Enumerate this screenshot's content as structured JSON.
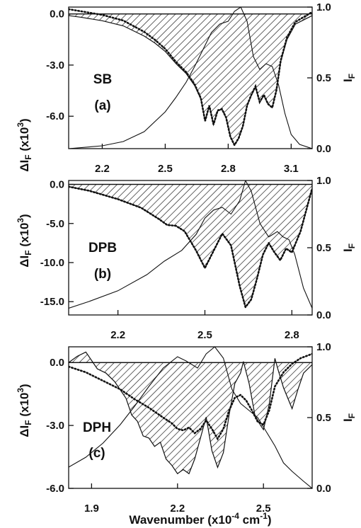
{
  "figure": {
    "xlabel": "Wavenumber (x10",
    "xlabel_sup": "-4",
    "xlabel_unit": " cm",
    "xlabel_unit_sup": "-1",
    "xlabel_close": ")",
    "left_label_main": "ΔI",
    "left_label_sub": "F",
    "left_label_rest": " (x10",
    "left_label_sup": "3",
    "left_label_close": ")",
    "right_label_main": "I",
    "right_label_sub": "F"
  },
  "chart_data": [
    {
      "type": "area",
      "name_line1": "SB",
      "name_line2": "(a)",
      "xlim": [
        2.04,
        3.2
      ],
      "ylim_left": [
        -7.9,
        0.4
      ],
      "ylim_right": [
        0.0,
        1.0
      ],
      "x_ticks": [
        2.2,
        2.5,
        2.8,
        3.1
      ],
      "x_tick_labels": [
        "2.2",
        "2.5",
        "2.8",
        "3.1"
      ],
      "y_left_ticks": [
        0.0,
        -3.0,
        -6.0
      ],
      "y_left_tick_labels": [
        "0.0",
        "-3.0",
        "-6.0"
      ],
      "y_right_ticks": [
        0.0,
        0.5,
        1.0
      ],
      "y_right_tick_labels": [
        "0.0",
        "0.5",
        "1.0"
      ],
      "delta_if": {
        "x": [
          2.04,
          2.1,
          2.2,
          2.3,
          2.35,
          2.4,
          2.45,
          2.5,
          2.55,
          2.6,
          2.64,
          2.67,
          2.69,
          2.71,
          2.73,
          2.75,
          2.77,
          2.79,
          2.81,
          2.83,
          2.85,
          2.87,
          2.89,
          2.91,
          2.93,
          2.95,
          2.97,
          2.99,
          3.01,
          3.03,
          3.05,
          3.08,
          3.12,
          3.2
        ],
        "y": [
          -0.1,
          -0.2,
          -0.4,
          -0.7,
          -1.0,
          -1.3,
          -1.7,
          -2.2,
          -2.9,
          -3.5,
          -4.2,
          -5.0,
          -6.3,
          -5.4,
          -6.5,
          -5.7,
          -5.6,
          -6.1,
          -7.2,
          -7.7,
          -7.3,
          -6.6,
          -5.4,
          -4.8,
          -4.3,
          -5.2,
          -4.8,
          -5.3,
          -5.5,
          -4.5,
          -2.8,
          -1.5,
          -0.6,
          -0.1
        ]
      },
      "if_spectrum": {
        "x": [
          2.04,
          2.2,
          2.3,
          2.4,
          2.5,
          2.55,
          2.6,
          2.64,
          2.68,
          2.72,
          2.76,
          2.8,
          2.83,
          2.86,
          2.89,
          2.92,
          2.95,
          2.98,
          3.01,
          3.04,
          3.07,
          3.1,
          3.14,
          3.2
        ],
        "y": [
          0.0,
          0.02,
          0.05,
          0.12,
          0.26,
          0.36,
          0.47,
          0.58,
          0.7,
          0.82,
          0.88,
          0.9,
          0.97,
          1.0,
          0.9,
          0.65,
          0.56,
          0.6,
          0.58,
          0.45,
          0.25,
          0.1,
          0.03,
          0.0
        ]
      },
      "if_dotted": {
        "x": [
          2.04,
          2.1,
          2.2,
          2.3,
          2.35,
          2.4,
          2.45,
          2.5,
          2.55,
          2.6,
          2.64,
          2.67,
          2.69,
          2.71,
          2.73,
          2.75,
          2.77,
          2.79,
          2.81,
          2.83,
          2.85,
          2.87,
          2.89,
          2.91,
          2.93,
          2.95,
          2.97,
          2.99,
          3.01,
          3.03,
          3.05,
          3.08,
          3.12,
          3.2
        ],
        "y": [
          0.985,
          0.97,
          0.945,
          0.905,
          0.865,
          0.825,
          0.77,
          0.705,
          0.615,
          0.54,
          0.455,
          0.355,
          0.195,
          0.305,
          0.17,
          0.27,
          0.28,
          0.22,
          0.085,
          0.025,
          0.075,
          0.16,
          0.305,
          0.38,
          0.44,
          0.33,
          0.38,
          0.315,
          0.29,
          0.415,
          0.62,
          0.785,
          0.895,
          0.965
        ]
      }
    },
    {
      "type": "area",
      "name_line1": "DPB",
      "name_line2": "(b)",
      "xlim": [
        2.03,
        2.87
      ],
      "ylim_left": [
        -16.7,
        0.5
      ],
      "ylim_right": [
        0.0,
        1.0
      ],
      "x_ticks": [
        2.2,
        2.5,
        2.8
      ],
      "x_tick_labels": [
        "2.2",
        "2.5",
        "2.8"
      ],
      "y_left_ticks": [
        0.0,
        -5.0,
        -10.0,
        -15.0
      ],
      "y_left_tick_labels": [
        "0.0",
        "-5.0",
        "-10.0",
        "-15.0"
      ],
      "y_right_ticks": [
        0.0,
        0.5,
        1.0
      ],
      "y_right_tick_labels": [
        "0.0",
        "0.5",
        "1.0"
      ],
      "delta_if": {
        "x": [
          2.03,
          2.1,
          2.2,
          2.28,
          2.34,
          2.37,
          2.4,
          2.43,
          2.47,
          2.5,
          2.53,
          2.56,
          2.59,
          2.62,
          2.64,
          2.66,
          2.68,
          2.7,
          2.72,
          2.74,
          2.76,
          2.78,
          2.8,
          2.83,
          2.87
        ],
        "y": [
          -0.3,
          -0.8,
          -1.9,
          -3.0,
          -4.4,
          -5.2,
          -5.3,
          -6.0,
          -8.5,
          -10.7,
          -8.5,
          -6.3,
          -7.8,
          -13.0,
          -15.7,
          -14.7,
          -12.0,
          -9.0,
          -7.5,
          -8.7,
          -9.7,
          -8.2,
          -8.7,
          -6.0,
          -0.5
        ]
      },
      "if_spectrum": {
        "x": [
          2.03,
          2.1,
          2.2,
          2.3,
          2.36,
          2.42,
          2.47,
          2.5,
          2.53,
          2.56,
          2.59,
          2.62,
          2.64,
          2.66,
          2.69,
          2.72,
          2.75,
          2.77,
          2.79,
          2.81,
          2.84,
          2.87
        ],
        "y": [
          0.05,
          0.1,
          0.18,
          0.3,
          0.4,
          0.48,
          0.6,
          0.72,
          0.78,
          0.8,
          0.75,
          0.85,
          1.0,
          0.92,
          0.68,
          0.58,
          0.62,
          0.58,
          0.56,
          0.45,
          0.2,
          0.05
        ]
      },
      "if_dotted": {
        "x": [
          2.03,
          2.1,
          2.2,
          2.28,
          2.34,
          2.37,
          2.4,
          2.43,
          2.47,
          2.5,
          2.53,
          2.56,
          2.59,
          2.62,
          2.64,
          2.66,
          2.68,
          2.7,
          2.72,
          2.74,
          2.76,
          2.78,
          2.8,
          2.83,
          2.87
        ],
        "y": [
          0.954,
          0.924,
          0.861,
          0.797,
          0.715,
          0.669,
          0.663,
          0.622,
          0.477,
          0.349,
          0.477,
          0.605,
          0.517,
          0.215,
          0.058,
          0.116,
          0.273,
          0.448,
          0.535,
          0.465,
          0.407,
          0.494,
          0.465,
          0.622,
          0.942
        ]
      }
    },
    {
      "type": "area",
      "name_line1": "DPH",
      "name_line2": "(c)",
      "xlim": [
        1.82,
        2.67
      ],
      "ylim_left": [
        -6.0,
        0.75
      ],
      "ylim_right": [
        0.0,
        1.0
      ],
      "x_ticks": [
        1.9,
        2.2,
        2.5
      ],
      "x_tick_labels": [
        "1.9",
        "2.2",
        "2.5"
      ],
      "y_left_ticks": [
        0.0,
        -3.0,
        -6.0
      ],
      "y_left_tick_labels": [
        "0.0",
        "-3.0",
        "-6.0"
      ],
      "y_right_ticks": [
        0.0,
        0.5,
        1.0
      ],
      "y_right_tick_labels": [
        "0.0",
        "0.5",
        "1.0"
      ],
      "delta_if": {
        "x": [
          1.82,
          1.85,
          1.88,
          1.9,
          1.92,
          1.95,
          1.98,
          2.0,
          2.02,
          2.04,
          2.06,
          2.08,
          2.1,
          2.12,
          2.14,
          2.16,
          2.18,
          2.2,
          2.22,
          2.24,
          2.26,
          2.28,
          2.3,
          2.32,
          2.34,
          2.36,
          2.38,
          2.4,
          2.42,
          2.43,
          2.45,
          2.47,
          2.49,
          2.5,
          2.52,
          2.54,
          2.55,
          2.57,
          2.6,
          2.62,
          2.64,
          2.67
        ],
        "y": [
          0.0,
          0.3,
          0.5,
          0.1,
          -0.3,
          -0.5,
          -0.9,
          -1.3,
          -1.7,
          -2.5,
          -2.8,
          -3.5,
          -3.6,
          -4.0,
          -3.8,
          -4.6,
          -4.9,
          -5.3,
          -5.1,
          -5.3,
          -4.6,
          -3.6,
          -2.6,
          -4.2,
          -5.0,
          -4.3,
          -2.5,
          -1.0,
          -0.5,
          0.05,
          -1.0,
          -2.5,
          -3.0,
          -3.2,
          -2.0,
          0.2,
          -0.3,
          -1.2,
          -2.2,
          -1.3,
          -0.5,
          -0.1
        ]
      },
      "if_spectrum": {
        "x": [
          1.82,
          1.88,
          1.94,
          2.0,
          2.05,
          2.1,
          2.15,
          2.2,
          2.23,
          2.27,
          2.3,
          2.33,
          2.36,
          2.39,
          2.42,
          2.45,
          2.48,
          2.51,
          2.54,
          2.57,
          2.6,
          2.64,
          2.67
        ],
        "y": [
          0.15,
          0.22,
          0.32,
          0.45,
          0.58,
          0.72,
          0.85,
          0.93,
          0.9,
          0.85,
          0.95,
          1.0,
          0.92,
          0.7,
          0.6,
          0.55,
          0.5,
          0.4,
          0.3,
          0.18,
          0.12,
          0.05,
          0.0
        ]
      },
      "if_dotted": {
        "x": [
          1.82,
          1.88,
          1.94,
          2.0,
          2.05,
          2.1,
          2.15,
          2.18,
          2.2,
          2.22,
          2.24,
          2.26,
          2.28,
          2.3,
          2.32,
          2.34,
          2.36,
          2.38,
          2.4,
          2.42,
          2.44,
          2.46,
          2.48,
          2.5,
          2.52,
          2.54,
          2.57,
          2.6,
          2.63,
          2.67
        ],
        "y": [
          0.86,
          0.82,
          0.76,
          0.7,
          0.63,
          0.57,
          0.5,
          0.46,
          0.42,
          0.41,
          0.43,
          0.39,
          0.42,
          0.48,
          0.42,
          0.35,
          0.42,
          0.55,
          0.64,
          0.66,
          0.62,
          0.55,
          0.47,
          0.45,
          0.55,
          0.72,
          0.82,
          0.88,
          0.92,
          0.95
        ]
      }
    }
  ]
}
